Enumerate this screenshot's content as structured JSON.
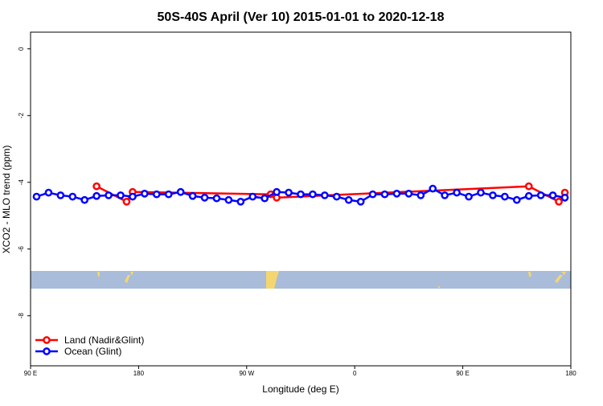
{
  "chart_data": {
    "type": "line",
    "title": "50S-40S April (Ver 10)   2015-01-01 to 2020-12-18",
    "xlabel": "Longitude (deg E)",
    "ylabel": "XCO2 - MLO trend (ppm)",
    "xlim": [
      90,
      540
    ],
    "ylim": [
      -9.5,
      0.5
    ],
    "xticks": [
      {
        "value": 90,
        "label": "90 E"
      },
      180,
      {
        "value": 270,
        "label": "90 W"
      },
      {
        "value": 360,
        "label": "0"
      },
      {
        "value": 450,
        "label": "90 E"
      },
      {
        "value": 540,
        "label": "180"
      }
    ],
    "yticks": [
      -8,
      -6,
      -4,
      -2,
      0
    ],
    "legend": "bottom-left",
    "series": [
      {
        "name": "Land (Nadir&Glint)",
        "color": "#ff0000",
        "x": [
          145,
          170,
          175,
          290,
          295,
          505,
          530,
          535
        ],
        "values": [
          -4.12,
          -4.58,
          -4.29,
          -4.36,
          -4.46,
          -4.12,
          -4.58,
          -4.31
        ]
      },
      {
        "name": "Ocean (Glint)",
        "color": "#0000ff",
        "x": [
          95,
          105,
          115,
          125,
          135,
          145,
          155,
          165,
          175,
          185,
          195,
          205,
          215,
          225,
          235,
          245,
          255,
          265,
          275,
          285,
          295,
          305,
          315,
          325,
          335,
          345,
          355,
          365,
          375,
          385,
          395,
          405,
          415,
          425,
          435,
          445,
          455,
          465,
          475,
          485,
          495,
          505,
          515,
          525,
          535
        ],
        "values": [
          -4.43,
          -4.31,
          -4.39,
          -4.43,
          -4.53,
          -4.41,
          -4.39,
          -4.39,
          -4.43,
          -4.34,
          -4.36,
          -4.36,
          -4.29,
          -4.41,
          -4.46,
          -4.48,
          -4.53,
          -4.58,
          -4.43,
          -4.48,
          -4.29,
          -4.31,
          -4.36,
          -4.36,
          -4.39,
          -4.43,
          -4.53,
          -4.58,
          -4.36,
          -4.36,
          -4.34,
          -4.34,
          -4.39,
          -4.19,
          -4.39,
          -4.31,
          -4.43,
          -4.31,
          -4.39,
          -4.43,
          -4.53,
          -4.41,
          -4.39,
          -4.39,
          -4.46
        ]
      }
    ]
  }
}
